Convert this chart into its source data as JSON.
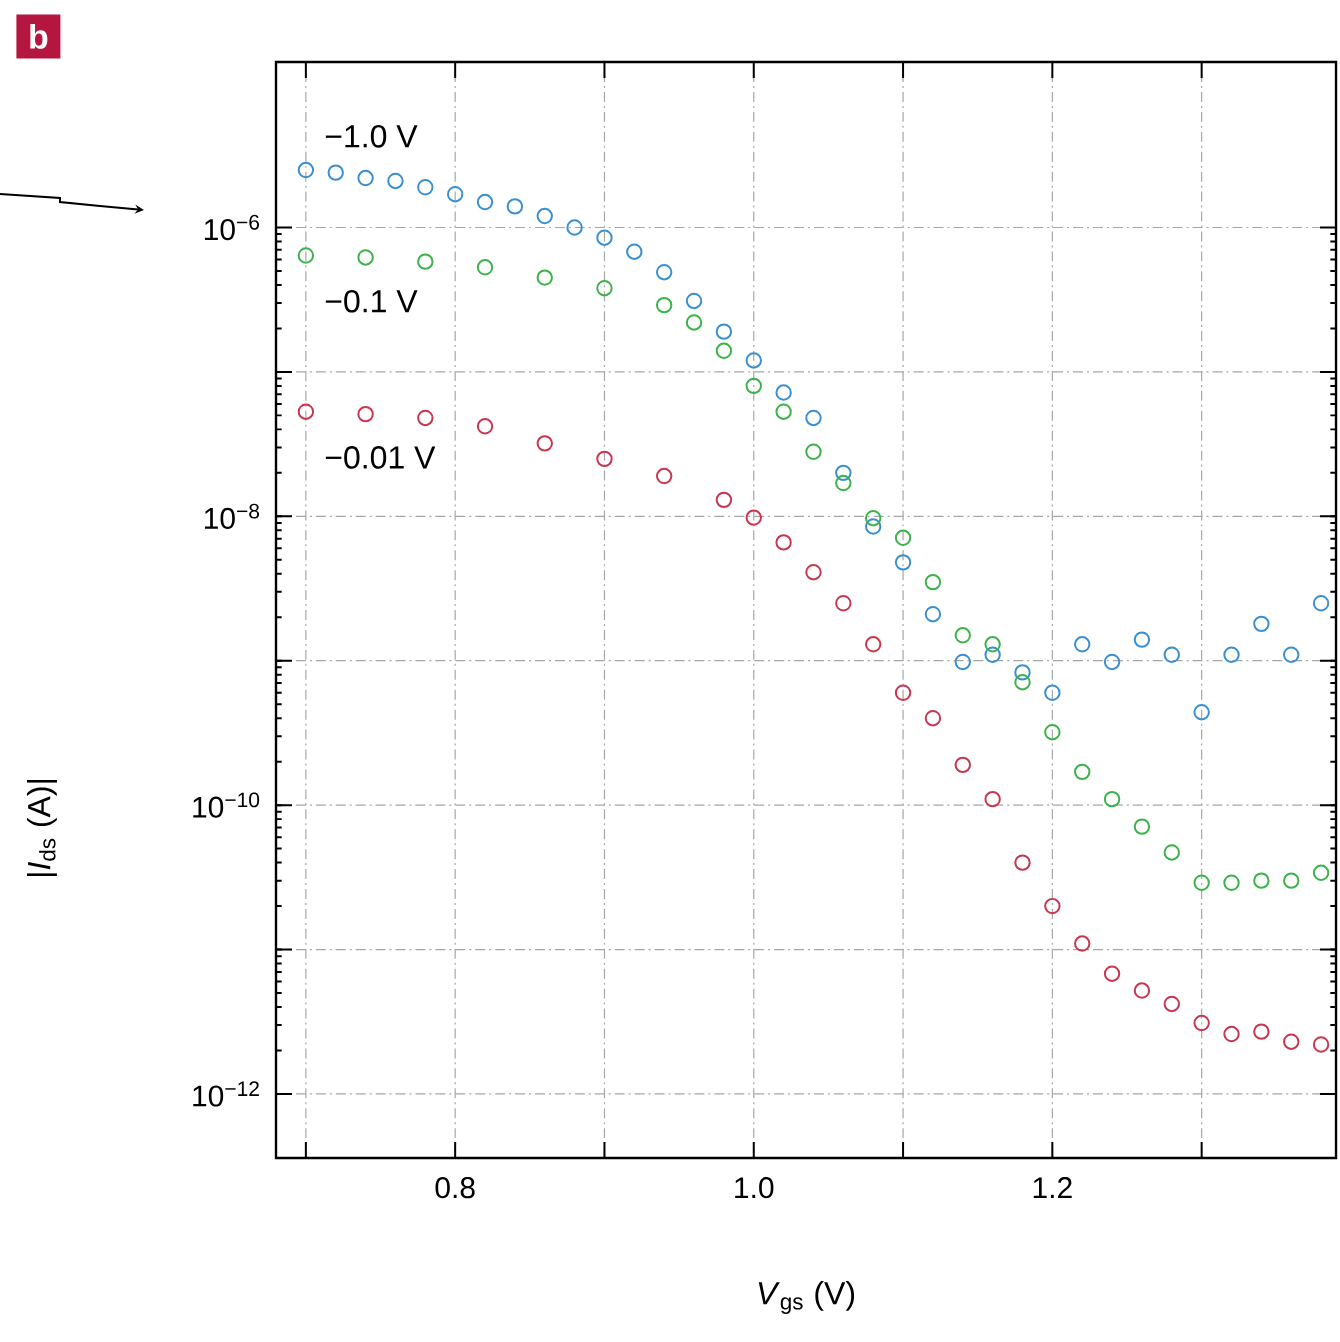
{
  "chart_data": {
    "type": "scatter",
    "xlabel": "*V*$_{gs}$ (V)",
    "ylabel": "|*I*$_{ds}$ (A)|",
    "annotations": [
      "b"
    ],
    "log": "y",
    "grid": true,
    "marker": "circle",
    "xlim": [
      0.68,
      1.39
    ],
    "ylim": [
      3.6e-13,
      1.4e-05
    ],
    "xticks": [
      {
        "value": 0.7,
        "label": null
      },
      0.8,
      {
        "value": 0.9,
        "label": null
      },
      {
        "value": 1.0,
        "label": "1.0"
      },
      {
        "value": 1.1,
        "label": null
      },
      1.2,
      {
        "value": 1.3,
        "label": null
      }
    ],
    "yticks": [
      {
        "value": 1e-12,
        "label": "10$^{−12}$"
      },
      {
        "value": 1e-11,
        "label": null
      },
      {
        "value": 1e-10,
        "label": "10$^{−10}$"
      },
      {
        "value": 1e-09,
        "label": null
      },
      {
        "value": 1e-08,
        "label": "10$^{−8}$"
      },
      {
        "value": 1e-07,
        "label": null
      },
      {
        "value": 1e-06,
        "label": "10$^{−6}$"
      }
    ],
    "series": [
      {
        "name": "−1.0 V",
        "color": "#3a8fd0",
        "x": [
          0.7,
          0.72,
          0.74,
          0.76,
          0.78,
          0.8,
          0.82,
          0.84,
          0.86,
          0.88,
          0.9,
          0.92,
          0.94,
          0.96,
          0.98,
          1.0,
          1.02,
          1.04,
          1.06,
          1.08,
          1.1,
          1.12,
          1.14,
          1.16,
          1.18,
          1.2,
          1.22,
          1.24,
          1.26,
          1.28,
          1.3,
          1.32,
          1.34,
          1.36,
          1.38
        ],
        "values": [
          2.5e-06,
          2.4e-06,
          2.2e-06,
          2.1e-06,
          1.9e-06,
          1.7e-06,
          1.5e-06,
          1.4e-06,
          1.2e-06,
          1e-06,
          8.5e-07,
          6.8e-07,
          4.9e-07,
          3.1e-07,
          1.9e-07,
          1.2e-07,
          7.2e-08,
          4.8e-08,
          2e-08,
          8.5e-09,
          4.8e-09,
          2.1e-09,
          9.8e-10,
          1.1e-09,
          8.3e-10,
          6e-10,
          1.3e-09,
          9.8e-10,
          1.4e-09,
          1.1e-09,
          4.4e-10,
          1.1e-09,
          1.8e-09,
          1.1e-09,
          2.5e-09
        ]
      },
      {
        "name": "−0.1 V",
        "color": "#3cb34a",
        "x": [
          0.7,
          0.74,
          0.78,
          0.82,
          0.86,
          0.9,
          0.94,
          0.96,
          0.98,
          1.0,
          1.02,
          1.04,
          1.06,
          1.08,
          1.1,
          1.12,
          1.14,
          1.16,
          1.18,
          1.2,
          1.22,
          1.24,
          1.26,
          1.28,
          1.3,
          1.32,
          1.34,
          1.36,
          1.38
        ],
        "values": [
          6.4e-07,
          6.2e-07,
          5.8e-07,
          5.3e-07,
          4.5e-07,
          3.8e-07,
          2.9e-07,
          2.2e-07,
          1.4e-07,
          8e-08,
          5.3e-08,
          2.8e-08,
          1.7e-08,
          9.7e-09,
          7.1e-09,
          3.5e-09,
          1.5e-09,
          1.3e-09,
          7.1e-10,
          3.2e-10,
          1.7e-10,
          1.1e-10,
          7.1e-11,
          4.7e-11,
          2.9e-11,
          2.9e-11,
          3e-11,
          3e-11,
          3.4e-11
        ]
      },
      {
        "name": "−0.01 V",
        "color": "#c8374f",
        "x": [
          0.7,
          0.74,
          0.78,
          0.82,
          0.86,
          0.9,
          0.94,
          0.98,
          1.0,
          1.02,
          1.04,
          1.06,
          1.08,
          1.1,
          1.12,
          1.14,
          1.16,
          1.18,
          1.2,
          1.22,
          1.24,
          1.26,
          1.28,
          1.3,
          1.32,
          1.34,
          1.36,
          1.38
        ],
        "values": [
          5.3e-08,
          5.1e-08,
          4.8e-08,
          4.2e-08,
          3.2e-08,
          2.5e-08,
          1.9e-08,
          1.3e-08,
          9.8e-09,
          6.6e-09,
          4.1e-09,
          2.5e-09,
          1.3e-09,
          6e-10,
          4e-10,
          1.9e-10,
          1.1e-10,
          4e-11,
          2e-11,
          1.1e-11,
          6.8e-12,
          5.2e-12,
          4.2e-12,
          3.1e-12,
          2.6e-12,
          2.7e-12,
          2.3e-12,
          2.2e-12
        ]
      }
    ]
  }
}
